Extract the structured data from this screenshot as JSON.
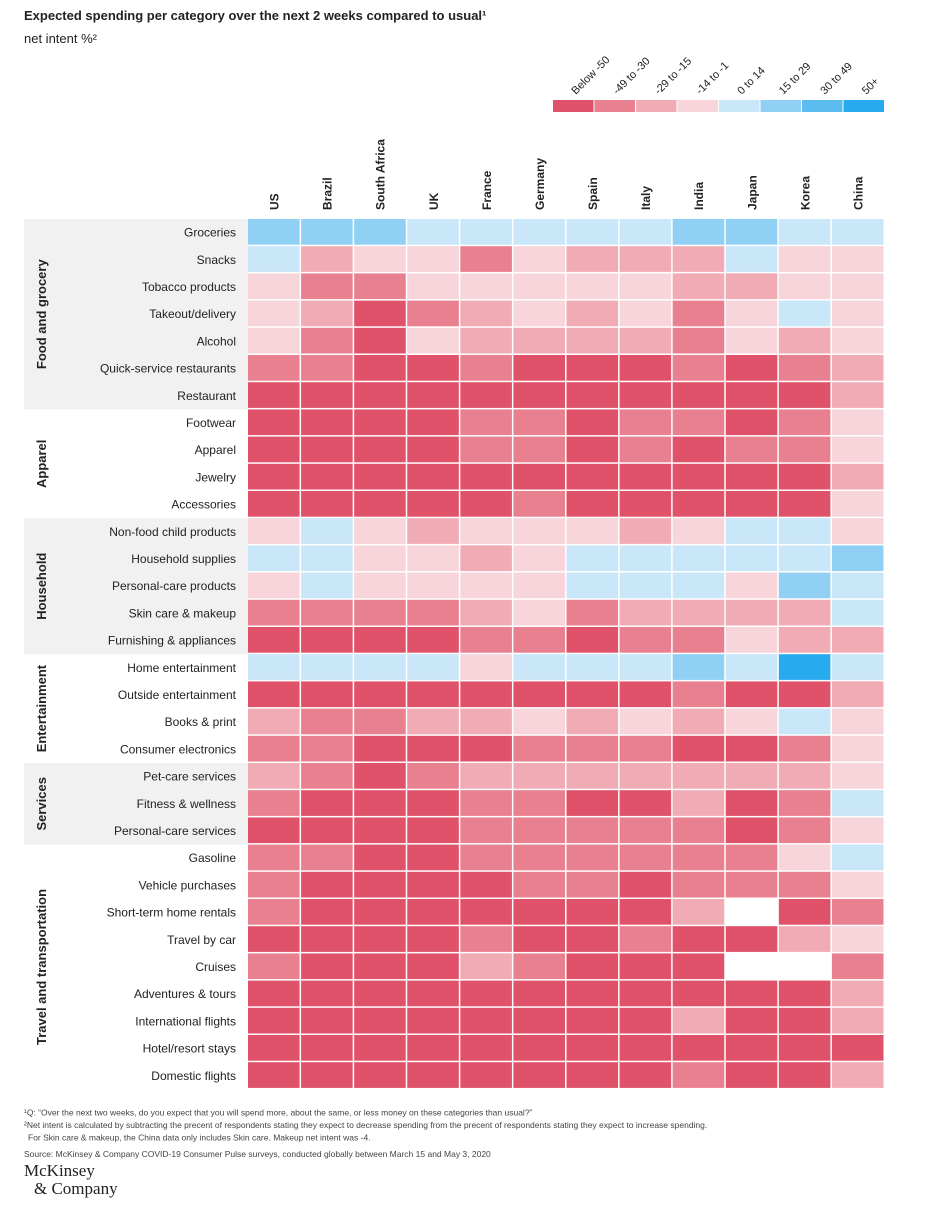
{
  "chart_data": {
    "type": "heatmap",
    "title": "Expected spending per category over the next 2 weeks compared to usual¹",
    "subtitle": "net intent %²",
    "columns": [
      "US",
      "Brazil",
      "South Africa",
      "UK",
      "France",
      "Germany",
      "Spain",
      "Italy",
      "India",
      "Japan",
      "Korea",
      "China"
    ],
    "legend": {
      "labels": [
        "Below -50",
        "-49 to -30",
        "-29 to -15",
        "-14 to -1",
        "0 to 14",
        "15 to 29",
        "30 to 49",
        "50+"
      ],
      "colors": [
        "#e0526a",
        "#e8808f",
        "#f0abb5",
        "#f8d5db",
        "#c9e7f8",
        "#8fd0f4",
        "#5cbcf0",
        "#27aaee"
      ]
    },
    "groups": [
      {
        "name": "Food and grocery",
        "rows": [
          "Groceries",
          "Snacks",
          "Tobacco products",
          "Takeout/delivery",
          "Alcohol",
          "Quick-service restaurants",
          "Restaurant"
        ],
        "cells": [
          [
            5,
            5,
            5,
            4,
            4,
            4,
            4,
            4,
            5,
            5,
            4,
            4
          ],
          [
            4,
            2,
            3,
            3,
            1,
            3,
            2,
            2,
            2,
            4,
            3,
            3
          ],
          [
            3,
            1,
            1,
            3,
            3,
            3,
            3,
            3,
            2,
            2,
            3,
            3
          ],
          [
            3,
            2,
            0,
            1,
            2,
            3,
            2,
            3,
            1,
            3,
            4,
            3
          ],
          [
            3,
            1,
            0,
            3,
            2,
            2,
            2,
            2,
            1,
            3,
            2,
            3
          ],
          [
            1,
            1,
            0,
            0,
            1,
            0,
            0,
            0,
            1,
            0,
            1,
            2
          ],
          [
            0,
            0,
            0,
            0,
            0,
            0,
            0,
            0,
            0,
            0,
            0,
            2
          ]
        ]
      },
      {
        "name": "Apparel",
        "rows": [
          "Footwear",
          "Apparel",
          "Jewelry",
          "Accessories"
        ],
        "cells": [
          [
            0,
            0,
            0,
            0,
            1,
            1,
            0,
            1,
            1,
            0,
            1,
            3
          ],
          [
            0,
            0,
            0,
            0,
            1,
            1,
            0,
            1,
            0,
            1,
            1,
            3
          ],
          [
            0,
            0,
            0,
            0,
            0,
            0,
            0,
            0,
            0,
            0,
            0,
            2
          ],
          [
            0,
            0,
            0,
            0,
            0,
            1,
            0,
            0,
            0,
            0,
            0,
            3
          ]
        ]
      },
      {
        "name": "Household",
        "rows": [
          "Non-food child products",
          "Household supplies",
          "Personal-care products",
          "Skin care & makeup",
          "Furnishing & appliances"
        ],
        "cells": [
          [
            3,
            4,
            3,
            2,
            3,
            3,
            3,
            2,
            3,
            4,
            4,
            3
          ],
          [
            4,
            4,
            3,
            3,
            2,
            3,
            4,
            4,
            4,
            4,
            4,
            5
          ],
          [
            3,
            4,
            3,
            3,
            3,
            3,
            4,
            4,
            4,
            3,
            5,
            4
          ],
          [
            1,
            1,
            1,
            1,
            2,
            3,
            1,
            2,
            2,
            2,
            2,
            4
          ],
          [
            0,
            0,
            0,
            0,
            1,
            1,
            0,
            1,
            1,
            3,
            2,
            2
          ]
        ]
      },
      {
        "name": "Entertainment",
        "rows": [
          "Home entertainment",
          "Outside entertainment",
          "Books & print",
          "Consumer electronics"
        ],
        "cells": [
          [
            4,
            4,
            4,
            4,
            3,
            4,
            4,
            4,
            5,
            4,
            7,
            4
          ],
          [
            0,
            0,
            0,
            0,
            0,
            0,
            0,
            0,
            1,
            0,
            0,
            2
          ],
          [
            2,
            1,
            1,
            2,
            2,
            3,
            2,
            3,
            2,
            3,
            4,
            3
          ],
          [
            1,
            1,
            0,
            0,
            0,
            1,
            1,
            1,
            0,
            0,
            1,
            3
          ]
        ]
      },
      {
        "name": "Services",
        "rows": [
          "Pet-care services",
          "Fitness & wellness",
          "Personal-care services"
        ],
        "cells": [
          [
            2,
            1,
            0,
            1,
            2,
            2,
            2,
            2,
            2,
            2,
            2,
            3
          ],
          [
            1,
            0,
            0,
            0,
            1,
            1,
            0,
            0,
            2,
            0,
            1,
            4
          ],
          [
            0,
            0,
            0,
            0,
            1,
            1,
            1,
            1,
            1,
            0,
            1,
            3
          ]
        ]
      },
      {
        "name": "Travel and transportation",
        "rows": [
          "Gasoline",
          "Vehicle purchases",
          "Short-term home rentals",
          "Travel by car",
          "Cruises",
          "Adventures & tours",
          "International flights",
          "Hotel/resort stays",
          "Domestic flights"
        ],
        "cells": [
          [
            1,
            1,
            0,
            0,
            1,
            1,
            1,
            1,
            1,
            1,
            3,
            4
          ],
          [
            1,
            0,
            0,
            0,
            0,
            1,
            1,
            0,
            1,
            1,
            1,
            3
          ],
          [
            1,
            0,
            0,
            0,
            0,
            0,
            0,
            0,
            2,
            null,
            0,
            1
          ],
          [
            0,
            0,
            0,
            0,
            1,
            0,
            0,
            1,
            0,
            0,
            2,
            3
          ],
          [
            1,
            0,
            0,
            0,
            2,
            1,
            0,
            0,
            0,
            null,
            null,
            1
          ],
          [
            0,
            0,
            0,
            0,
            0,
            0,
            0,
            0,
            0,
            0,
            0,
            2
          ],
          [
            0,
            0,
            0,
            0,
            0,
            0,
            0,
            0,
            2,
            0,
            0,
            2
          ],
          [
            0,
            0,
            0,
            0,
            0,
            0,
            0,
            0,
            0,
            0,
            0,
            0
          ],
          [
            0,
            0,
            0,
            0,
            0,
            0,
            0,
            0,
            1,
            0,
            0,
            2
          ]
        ]
      }
    ],
    "footnotes": [
      "¹Q: “Over the next two weeks, do you expect that you will spend more, about the same, or less money on these categories than usual?”",
      "²Net intent is calculated by subtracting the precent of respondents stating they expect to decrease spending from the precent of respondents stating they expect to increase spending.",
      "For Skin care & makeup, the China data only includes Skin care. Makeup net intent was -4.",
      "Source: McKinsey & Company COVID-19 Consumer Pulse surveys, conducted globally between March 15 and May 3, 2020"
    ],
    "logo": [
      "McKinsey",
      "& Company"
    ]
  }
}
